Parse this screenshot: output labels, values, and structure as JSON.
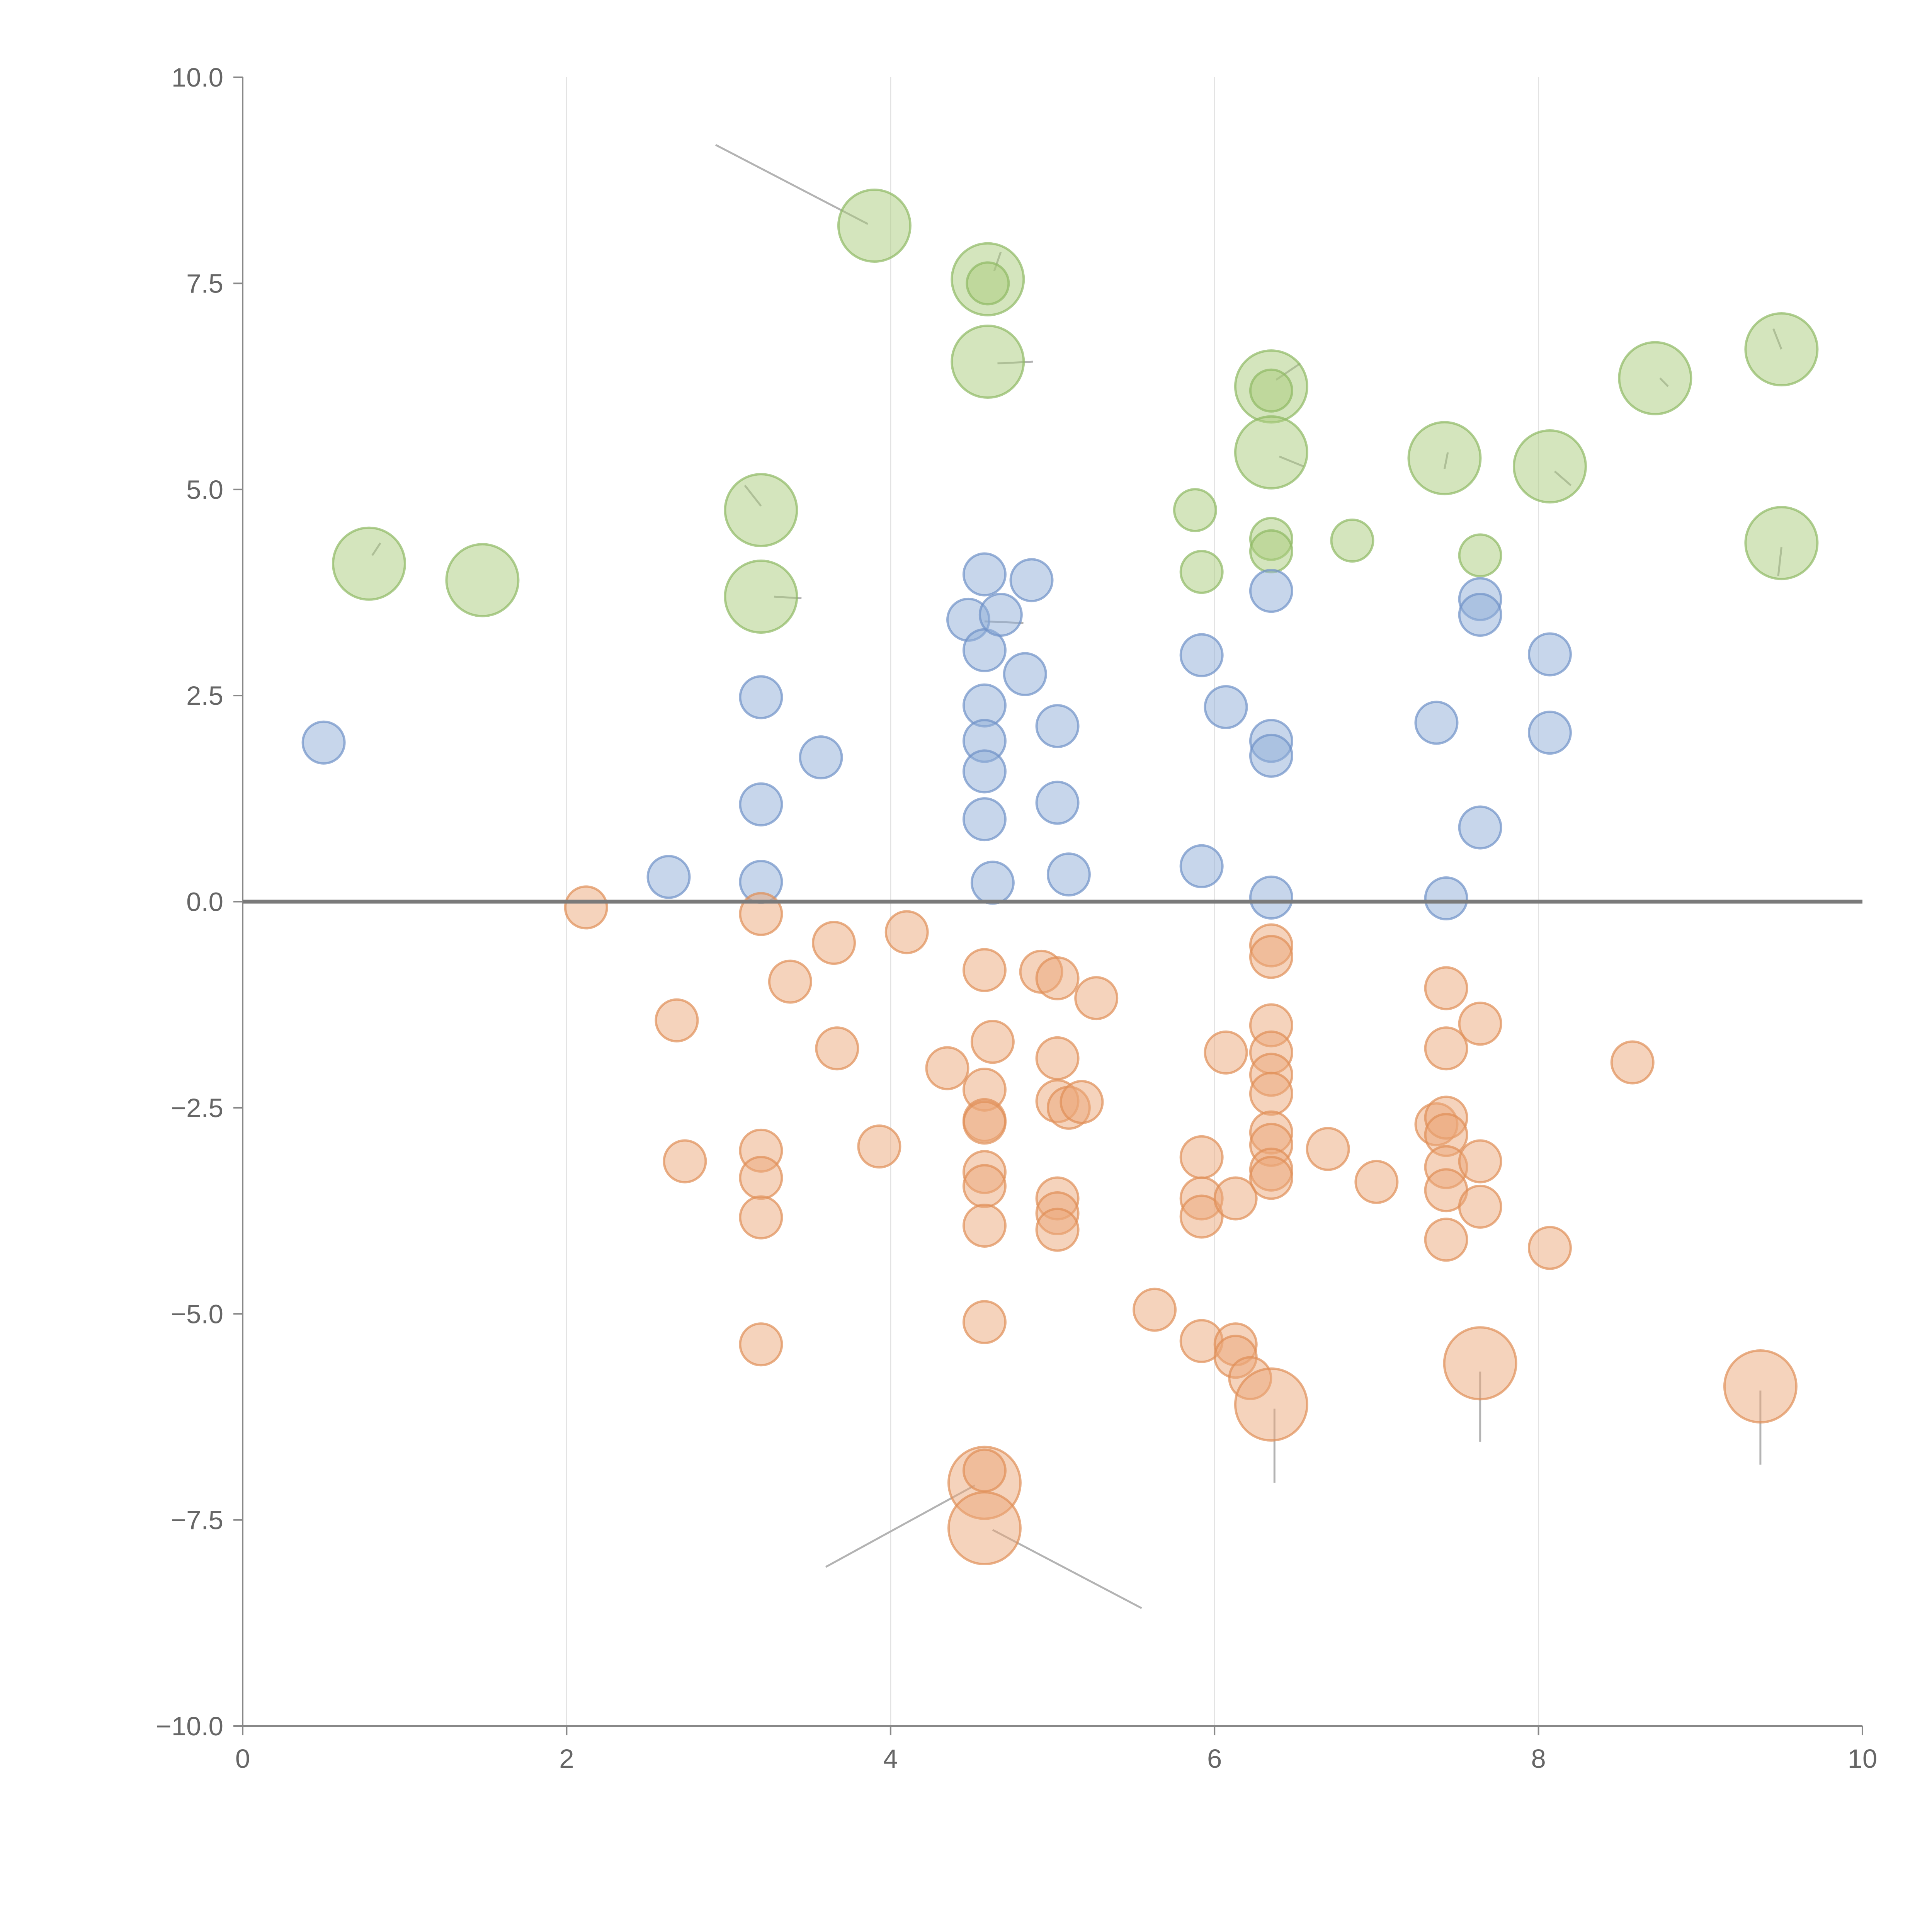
{
  "chart_data": {
    "type": "scatter",
    "title": "",
    "xlabel": "",
    "ylabel": "",
    "xlim": [
      0,
      10
    ],
    "ylim": [
      -10,
      10
    ],
    "grid": "vertical",
    "xticks": [
      "0",
      "2",
      "4",
      "6",
      "8",
      "10"
    ],
    "yticks": [
      "10.0",
      "7.5",
      "5.0",
      "2.5",
      "0.0",
      "−2.5",
      "−5.0",
      "−7.5",
      "−10.0"
    ],
    "xtick_values": [
      0,
      2,
      4,
      6,
      8,
      10
    ],
    "ytick_values": [
      10,
      7.5,
      5,
      2.5,
      0,
      -2.5,
      -5,
      -7.5,
      -10
    ],
    "reference_line_y": 0,
    "series": [
      {
        "name": "green",
        "color": "#a9cc7c",
        "stroke": "#8fb964",
        "points": [
          [
            3.9,
            8.2,
            2
          ],
          [
            4.6,
            7.55,
            2
          ],
          [
            4.6,
            7.5,
            1
          ],
          [
            4.6,
            6.55,
            2
          ],
          [
            6.35,
            6.25,
            2
          ],
          [
            6.35,
            6.2,
            1
          ],
          [
            6.35,
            5.45,
            2
          ],
          [
            7.42,
            5.38,
            2
          ],
          [
            8.07,
            5.28,
            2
          ],
          [
            8.72,
            6.35,
            2
          ],
          [
            9.5,
            6.7,
            2
          ],
          [
            9.5,
            4.35,
            2
          ],
          [
            3.2,
            4.75,
            2
          ],
          [
            3.2,
            3.7,
            2
          ],
          [
            0.78,
            4.1,
            2
          ],
          [
            1.48,
            3.9,
            2
          ],
          [
            5.88,
            4.75,
            1
          ],
          [
            5.92,
            4.0,
            1
          ],
          [
            6.35,
            4.4,
            1
          ],
          [
            6.35,
            4.25,
            1
          ],
          [
            6.85,
            4.38,
            1
          ],
          [
            7.64,
            4.2,
            1
          ]
        ]
      },
      {
        "name": "blue",
        "color": "#8fadd8",
        "stroke": "#6f92c7",
        "points": [
          [
            0.5,
            1.93,
            1
          ],
          [
            2.63,
            0.3,
            1
          ],
          [
            3.2,
            2.48,
            1
          ],
          [
            3.2,
            1.18,
            1
          ],
          [
            3.2,
            0.24,
            1
          ],
          [
            3.57,
            1.75,
            1
          ],
          [
            4.48,
            3.42,
            1
          ],
          [
            4.58,
            3.97,
            1
          ],
          [
            4.58,
            3.05,
            1
          ],
          [
            4.58,
            2.38,
            1
          ],
          [
            4.58,
            1.95,
            1
          ],
          [
            4.58,
            1.58,
            1
          ],
          [
            4.58,
            1.0,
            1
          ],
          [
            4.68,
            3.48,
            1
          ],
          [
            4.83,
            2.76,
            1
          ],
          [
            4.87,
            3.9,
            1
          ],
          [
            5.03,
            2.13,
            1
          ],
          [
            5.03,
            1.2,
            1
          ],
          [
            4.63,
            0.23,
            1
          ],
          [
            5.1,
            0.33,
            1
          ],
          [
            5.92,
            2.99,
            1
          ],
          [
            5.92,
            0.43,
            1
          ],
          [
            6.07,
            2.36,
            1
          ],
          [
            6.35,
            3.77,
            1
          ],
          [
            6.35,
            1.95,
            1
          ],
          [
            6.35,
            1.77,
            1
          ],
          [
            6.35,
            0.05,
            1
          ],
          [
            7.37,
            2.17,
            1
          ],
          [
            7.43,
            0.04,
            1
          ],
          [
            7.64,
            3.67,
            1
          ],
          [
            7.64,
            3.48,
            1
          ],
          [
            7.64,
            0.9,
            1
          ],
          [
            8.07,
            3.0,
            1
          ],
          [
            8.07,
            2.05,
            1
          ]
        ]
      },
      {
        "name": "orange",
        "color": "#eba77a",
        "stroke": "#e08e57",
        "points": [
          [
            2.12,
            -0.07,
            1
          ],
          [
            3.2,
            -0.15,
            1
          ],
          [
            3.65,
            -0.5,
            1
          ],
          [
            4.1,
            -0.37,
            1
          ],
          [
            3.38,
            -0.97,
            1
          ],
          [
            2.68,
            -1.44,
            1
          ],
          [
            3.67,
            -1.78,
            1
          ],
          [
            4.58,
            -0.83,
            1
          ],
          [
            4.93,
            -0.85,
            1
          ],
          [
            5.03,
            -0.93,
            1
          ],
          [
            5.27,
            -1.17,
            1
          ],
          [
            4.63,
            -1.7,
            1
          ],
          [
            4.35,
            -2.02,
            1
          ],
          [
            4.58,
            -2.28,
            1
          ],
          [
            4.58,
            -2.65,
            1
          ],
          [
            4.58,
            -2.68,
            1
          ],
          [
            5.03,
            -1.9,
            1
          ],
          [
            5.03,
            -2.42,
            1
          ],
          [
            5.1,
            -2.5,
            1
          ],
          [
            5.18,
            -2.43,
            1
          ],
          [
            3.2,
            -3.02,
            1
          ],
          [
            3.2,
            -3.35,
            1
          ],
          [
            3.2,
            -3.83,
            1
          ],
          [
            2.73,
            -3.15,
            1
          ],
          [
            3.93,
            -2.97,
            1
          ],
          [
            4.58,
            -3.28,
            1
          ],
          [
            4.58,
            -3.45,
            1
          ],
          [
            4.58,
            -3.93,
            1
          ],
          [
            5.03,
            -3.6,
            1
          ],
          [
            5.03,
            -3.78,
            1
          ],
          [
            5.03,
            -3.98,
            1
          ],
          [
            5.92,
            -3.1,
            1
          ],
          [
            5.92,
            -3.6,
            1
          ],
          [
            5.92,
            -3.82,
            1
          ],
          [
            6.13,
            -3.6,
            1
          ],
          [
            6.07,
            -1.83,
            1
          ],
          [
            6.35,
            -0.53,
            1
          ],
          [
            6.35,
            -0.67,
            1
          ],
          [
            6.35,
            -1.5,
            1
          ],
          [
            6.35,
            -1.83,
            1
          ],
          [
            6.35,
            -2.1,
            1
          ],
          [
            6.35,
            -2.33,
            1
          ],
          [
            6.35,
            -2.8,
            1
          ],
          [
            6.35,
            -2.95,
            1
          ],
          [
            6.35,
            -3.25,
            1
          ],
          [
            6.35,
            -3.35,
            1
          ],
          [
            6.7,
            -3.0,
            1
          ],
          [
            7.0,
            -3.4,
            1
          ],
          [
            7.43,
            -1.05,
            1
          ],
          [
            7.43,
            -1.78,
            1
          ],
          [
            7.37,
            -2.7,
            1
          ],
          [
            7.43,
            -2.62,
            1
          ],
          [
            7.43,
            -2.83,
            1
          ],
          [
            7.43,
            -3.22,
            1
          ],
          [
            7.43,
            -3.5,
            1
          ],
          [
            7.43,
            -4.1,
            1
          ],
          [
            7.64,
            -1.48,
            1
          ],
          [
            7.64,
            -3.15,
            1
          ],
          [
            7.64,
            -3.7,
            1
          ],
          [
            8.07,
            -4.2,
            1
          ],
          [
            8.58,
            -1.95,
            1
          ],
          [
            3.2,
            -5.37,
            1
          ],
          [
            4.58,
            -5.1,
            1
          ],
          [
            5.63,
            -4.95,
            1
          ],
          [
            5.92,
            -5.33,
            1
          ],
          [
            6.13,
            -5.37,
            1
          ],
          [
            6.13,
            -5.52,
            1
          ],
          [
            6.22,
            -5.78,
            1
          ],
          [
            6.35,
            -6.1,
            2
          ],
          [
            7.64,
            -5.6,
            2
          ],
          [
            9.37,
            -5.88,
            2
          ],
          [
            4.58,
            -7.05,
            2
          ],
          [
            4.58,
            -6.9,
            1
          ],
          [
            4.58,
            -7.6,
            2
          ]
        ]
      }
    ],
    "annotation_leaders": [
      [
        [
          2.92,
          9.18
        ],
        [
          3.86,
          8.22
        ]
      ],
      [
        [
          4.64,
          7.65
        ],
        [
          4.68,
          7.88
        ]
      ],
      [
        [
          4.66,
          6.53
        ],
        [
          4.88,
          6.55
        ]
      ],
      [
        [
          6.38,
          6.33
        ],
        [
          6.53,
          6.53
        ]
      ],
      [
        [
          6.4,
          5.4
        ],
        [
          6.55,
          5.28
        ]
      ],
      [
        [
          7.42,
          5.25
        ],
        [
          7.44,
          5.45
        ]
      ],
      [
        [
          8.1,
          5.22
        ],
        [
          8.2,
          5.05
        ]
      ],
      [
        [
          8.75,
          6.35
        ],
        [
          8.8,
          6.25
        ]
      ],
      [
        [
          9.5,
          6.7
        ],
        [
          9.45,
          6.95
        ]
      ],
      [
        [
          9.5,
          4.3
        ],
        [
          9.48,
          3.95
        ]
      ],
      [
        [
          3.2,
          4.8
        ],
        [
          3.1,
          5.05
        ]
      ],
      [
        [
          3.28,
          3.7
        ],
        [
          3.45,
          3.68
        ]
      ],
      [
        [
          0.8,
          4.2
        ],
        [
          0.85,
          4.35
        ]
      ],
      [
        [
          4.58,
          3.4
        ],
        [
          4.82,
          3.38
        ]
      ],
      [
        [
          6.37,
          -6.15
        ],
        [
          6.37,
          -7.05
        ]
      ],
      [
        [
          7.64,
          -5.7
        ],
        [
          7.64,
          -6.55
        ]
      ],
      [
        [
          9.37,
          -5.93
        ],
        [
          9.37,
          -6.83
        ]
      ],
      [
        [
          4.52,
          -7.08
        ],
        [
          3.6,
          -8.07
        ]
      ],
      [
        [
          4.63,
          -7.62
        ],
        [
          5.55,
          -8.57
        ]
      ]
    ]
  }
}
